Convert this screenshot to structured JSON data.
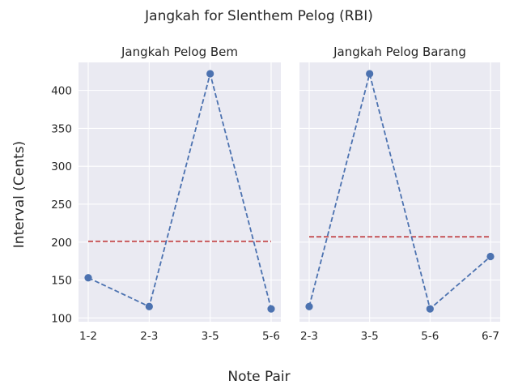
{
  "figure": {
    "suptitle": "Jangkah for Slenthem Pelog (RBI)",
    "xlabel": "Note Pair",
    "ylabel": "Interval (Cents)"
  },
  "colors": {
    "background": "#ffffff",
    "plot_bg": "#eaeaf2",
    "grid": "#ffffff",
    "series": "#4c72b0",
    "mean_line": "#c44e52",
    "text": "#262626"
  },
  "chart_data": [
    {
      "type": "line",
      "title": "Jangkah Pelog Bem",
      "categories": [
        "1-2",
        "2-3",
        "3-5",
        "5-6"
      ],
      "values": [
        153,
        115,
        422,
        112
      ],
      "reference_line": 201,
      "yticks": [
        100,
        150,
        200,
        250,
        300,
        350,
        400
      ],
      "ylim": [
        95,
        437
      ],
      "grid": true,
      "line_style": "dashed"
    },
    {
      "type": "line",
      "title": "Jangkah Pelog Barang",
      "categories": [
        "2-3",
        "3-5",
        "5-6",
        "6-7"
      ],
      "values": [
        115,
        422,
        112,
        181
      ],
      "reference_line": 207,
      "yticks": [
        100,
        150,
        200,
        250,
        300,
        350,
        400
      ],
      "ylim": [
        95,
        437
      ],
      "grid": true,
      "line_style": "dashed",
      "shared_y": true
    }
  ]
}
